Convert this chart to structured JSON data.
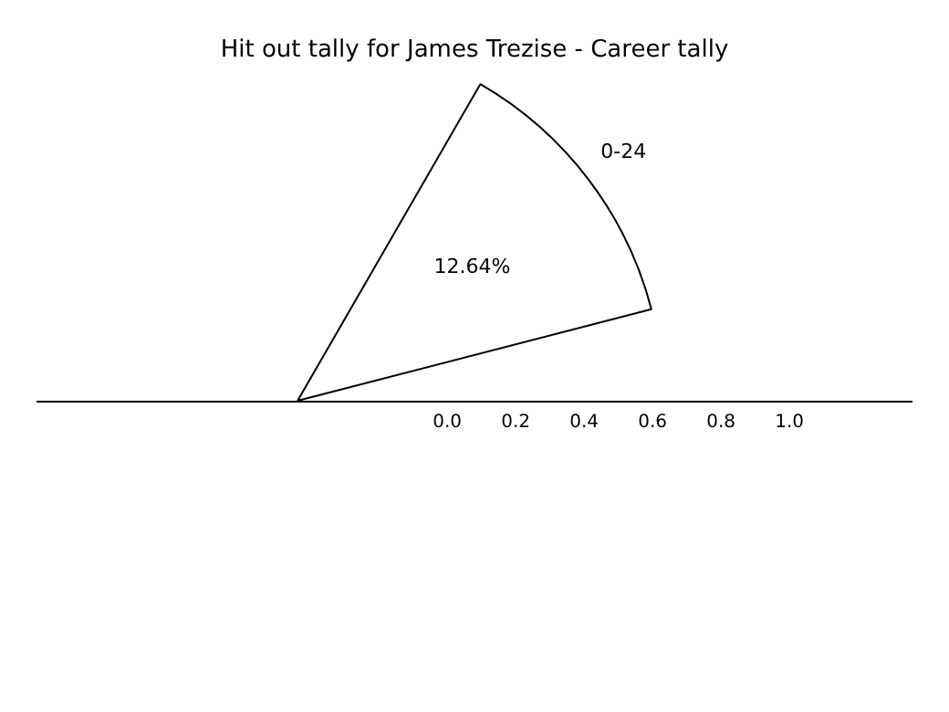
{
  "chart_data": {
    "type": "pie",
    "title": "Hit out tally for James Trezise - Career tally",
    "categories": [
      "0-24"
    ],
    "values": [
      12.64
    ],
    "colors": [
      "#ffffff"
    ],
    "value_labels": [
      "12.64%"
    ],
    "annotations": [
      "0.0",
      "0.2",
      "0.4",
      "0.6",
      "0.8",
      "1.0"
    ]
  }
}
